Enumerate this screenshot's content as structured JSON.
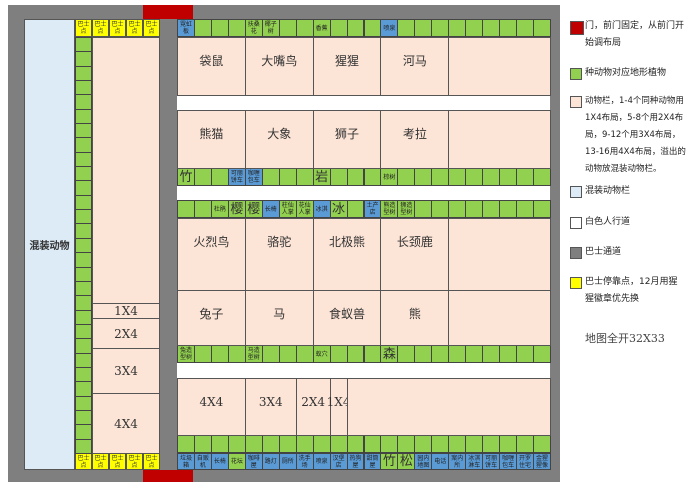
{
  "colors": {
    "door": "#c00000",
    "plant": "#92d050",
    "facility": "#5b9bd5",
    "enclosure": "#fce4d6",
    "mixed": "#ddebf7",
    "bus_road": "#7f7f7f",
    "bus_stop": "#ffff00"
  },
  "mixed_label": "混装动物",
  "bus_stop_label": "巴士点",
  "left_slots": [
    "1X4",
    "2X4",
    "3X4",
    "4X4"
  ],
  "enclosure_rows": [
    [
      "袋鼠",
      "大嘴鸟",
      "猩猩",
      "河马",
      ""
    ],
    [
      "熊猫",
      "大象",
      "狮子",
      "考拉",
      ""
    ],
    [
      "火烈鸟",
      "骆驼",
      "北极熊",
      "长颈鹿",
      ""
    ],
    [
      "兔子",
      "马",
      "食蚁兽",
      "熊",
      ""
    ]
  ],
  "bottom_slots": [
    "4X4",
    "3X4",
    "2X4",
    "1X4",
    ""
  ],
  "strips": {
    "top": [
      {
        "t": "霓虹板",
        "c": "b"
      },
      {},
      {},
      {},
      {
        "t": "扶桑花"
      },
      {
        "t": "椰子树"
      },
      {},
      {},
      {
        "t": "香蕉"
      },
      {},
      {},
      {},
      {
        "t": "喷泉",
        "c": "b"
      },
      {},
      {},
      {},
      {},
      {},
      {},
      {},
      {},
      {}
    ],
    "row2": [
      {
        "t": "竹",
        "big": 1
      },
      {},
      {},
      {
        "t": "可丽饼车",
        "c": "b"
      },
      {
        "t": "咖喱包车",
        "c": "b"
      },
      {},
      {},
      {},
      {
        "t": "岩",
        "big": 1
      },
      {},
      {},
      {},
      {
        "t": "棕树"
      },
      {},
      {},
      {},
      {},
      {},
      {},
      {},
      {},
      {}
    ],
    "row3": [
      {},
      {},
      {
        "t": "杜鹃"
      },
      {
        "t": "樱",
        "big": 1
      },
      {
        "t": "樱",
        "big": 1
      },
      {
        "t": "长椅",
        "c": "b"
      },
      {
        "t": "柱仙人掌"
      },
      {
        "t": "花仙人掌"
      },
      {
        "t": "冰淇",
        "c": "b"
      },
      {
        "t": "冰",
        "big": 1
      },
      {},
      {
        "t": "土产店",
        "c": "b"
      },
      {
        "t": "熊造型树"
      },
      {
        "t": "狮造型树"
      },
      {},
      {},
      {},
      {},
      {},
      {},
      {},
      {}
    ],
    "row4": [
      {
        "t": "兔造型树"
      },
      {},
      {},
      {},
      {
        "t": "马造型树"
      },
      {},
      {},
      {},
      {
        "t": "蚁穴"
      },
      {},
      {},
      {},
      {
        "t": "森",
        "big": 1
      },
      {},
      {},
      {},
      {},
      {},
      {},
      {},
      {},
      {}
    ],
    "empty": [
      {},
      {},
      {},
      {},
      {},
      {},
      {},
      {},
      {},
      {},
      {},
      {},
      {},
      {},
      {},
      {},
      {},
      {},
      {},
      {},
      {},
      {}
    ],
    "bottom": [
      {
        "t": "垃圾箱",
        "c": "b"
      },
      {
        "t": "自贩机",
        "c": "b"
      },
      {
        "t": "长椅",
        "c": "b"
      },
      {
        "t": "花坛"
      },
      {
        "t": "咖啡屋",
        "c": "b"
      },
      {
        "t": "路灯",
        "c": "b"
      },
      {
        "t": "厕所",
        "c": "b"
      },
      {
        "t": "洗手场",
        "c": "b"
      },
      {
        "t": "喷泉",
        "c": "b"
      },
      {
        "t": "汉堡店",
        "c": "b"
      },
      {
        "t": "热狗屋",
        "c": "b"
      },
      {
        "t": "甜筒屋",
        "c": "b"
      },
      {
        "t": "竹",
        "big": 1
      },
      {
        "t": "松",
        "big": 1
      },
      {
        "t": "园内地图",
        "c": "b"
      },
      {
        "t": "电话",
        "c": "b"
      },
      {
        "t": "案内所",
        "c": "b"
      },
      {
        "t": "冰淇淋车",
        "c": "b"
      },
      {
        "t": "可丽饼车",
        "c": "b"
      },
      {
        "t": "咖喱包车",
        "c": "b"
      },
      {
        "t": "开罗住宅",
        "c": "b"
      },
      {
        "t": "金猩猩像",
        "c": "b"
      }
    ]
  },
  "legend": {
    "door": "门，前门固定，从前门开始调布局",
    "plant": "种动物对应地形植物",
    "enclosure": "动物栏，1-4个同种动物用1X4布局，5-8个用2X4布局，9-12个用3X4布局，13-16用4X4布局，溢出的动物放混装动物栏。",
    "mixed": "混装动物栏",
    "walkway": "白色人行道",
    "bus_road": "巴士通道",
    "bus_stop": "巴士停靠点，12月用猩猩徽章优先换"
  },
  "map_size": "地图全开32X33"
}
